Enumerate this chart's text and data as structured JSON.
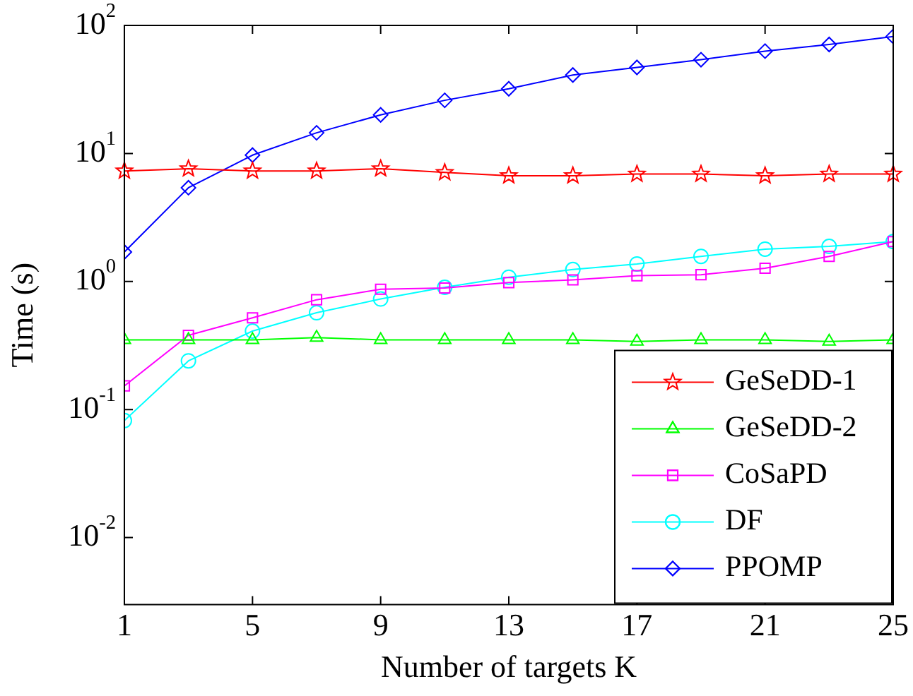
{
  "chart_data": {
    "type": "line",
    "xlabel": "Number of targets K",
    "ylabel": "Time (s)",
    "log": "y",
    "grid": false,
    "legend": "bottom right",
    "x": [
      1,
      3,
      5,
      7,
      9,
      11,
      13,
      15,
      17,
      19,
      21,
      23,
      25
    ],
    "xlim": [
      1,
      25
    ],
    "xticks": [
      1,
      5,
      9,
      13,
      17,
      21,
      25
    ],
    "ylim": [
      0.003,
      100
    ],
    "yticks": [
      {
        "value": 0.01,
        "label": "10$^{-2}$"
      },
      {
        "value": 0.1,
        "label": "10$^{-1}$"
      },
      {
        "value": 1,
        "label": "10$^{0}$"
      },
      {
        "value": 10,
        "label": "10$^{1}$"
      },
      {
        "value": 100,
        "label": "10$^{2}$"
      }
    ],
    "series": [
      {
        "name": "GeSeDD-1",
        "color": "#ff0000",
        "marker": "star",
        "values": [
          7.3,
          7.6,
          7.3,
          7.3,
          7.6,
          7.1,
          6.7,
          6.7,
          6.9,
          6.9,
          6.7,
          6.9,
          6.9
        ]
      },
      {
        "name": "GeSeDD-2",
        "color": "#00ff00",
        "marker": "triangle",
        "values": [
          0.35,
          0.35,
          0.35,
          0.365,
          0.35,
          0.35,
          0.35,
          0.35,
          0.34,
          0.35,
          0.35,
          0.34,
          0.35
        ]
      },
      {
        "name": "CoSaPD",
        "color": "#ff00ff",
        "marker": "square",
        "values": [
          0.153,
          0.38,
          0.52,
          0.72,
          0.87,
          0.89,
          0.98,
          1.03,
          1.11,
          1.13,
          1.27,
          1.57,
          2.05
        ]
      },
      {
        "name": "DF",
        "color": "#00ffff",
        "marker": "circle",
        "values": [
          0.082,
          0.24,
          0.41,
          0.57,
          0.73,
          0.9,
          1.08,
          1.24,
          1.37,
          1.57,
          1.79,
          1.88,
          2.05
        ]
      },
      {
        "name": "PPOMP",
        "color": "#0000ff",
        "marker": "diamond",
        "values": [
          1.7,
          5.4,
          9.7,
          14.5,
          20,
          26,
          32,
          41,
          47,
          54,
          63,
          71,
          82
        ]
      }
    ]
  }
}
